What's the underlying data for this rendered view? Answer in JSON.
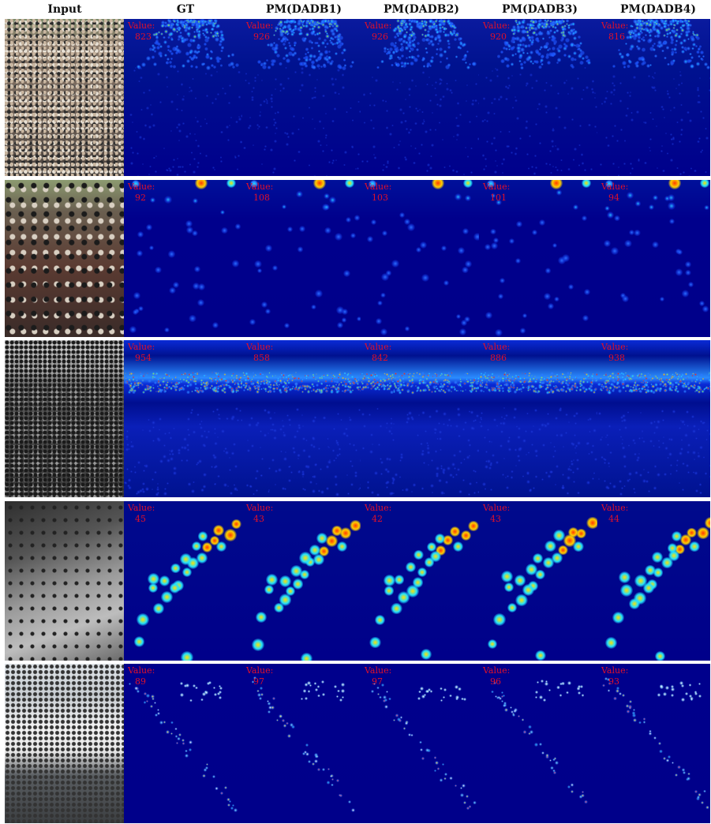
{
  "columns": [
    "Input",
    "GT",
    "PM(DADB1)",
    "PM(DADB2)",
    "PM(DADB3)",
    "PM(DADB4)"
  ],
  "value_label": "Value:",
  "rows": [
    {
      "scene": "marathon runners crowd",
      "counts": [
        "823",
        "926",
        "926",
        "920",
        "816"
      ]
    },
    {
      "scene": "pedestrian street crowd",
      "counts": [
        "92",
        "108",
        "103",
        "101",
        "94"
      ]
    },
    {
      "scene": "grayscale dense crowd",
      "counts": [
        "954",
        "858",
        "842",
        "886",
        "938"
      ]
    },
    {
      "scene": "grayscale walkway pedestrians",
      "counts": [
        "45",
        "43",
        "42",
        "43",
        "44"
      ]
    },
    {
      "scene": "canopy walkway crowd",
      "counts": [
        "89",
        "97",
        "97",
        "96",
        "93"
      ]
    }
  ],
  "colors": {
    "map_background": "#00008a",
    "value_text": "#e0102a",
    "separator": "#ffffff"
  }
}
